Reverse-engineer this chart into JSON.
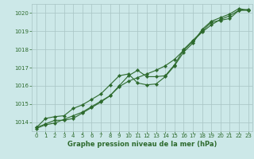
{
  "xlabel": "Graphe pression niveau de la mer (hPa)",
  "ylim": [
    1013.5,
    1020.5
  ],
  "xlim": [
    -0.5,
    23.5
  ],
  "yticks": [
    1014,
    1015,
    1016,
    1017,
    1018,
    1019,
    1020
  ],
  "xticks": [
    0,
    1,
    2,
    3,
    4,
    5,
    6,
    7,
    8,
    9,
    10,
    11,
    12,
    13,
    14,
    15,
    16,
    17,
    18,
    19,
    20,
    21,
    22,
    23
  ],
  "line1": [
    1013.7,
    1013.9,
    1014.1,
    1014.1,
    1014.2,
    1014.5,
    1014.8,
    1015.1,
    1015.45,
    1016.0,
    1016.55,
    1016.85,
    1016.5,
    1016.5,
    1016.55,
    1017.15,
    1018.0,
    1018.5,
    1019.0,
    1019.5,
    1019.6,
    1019.7,
    1020.15,
    1020.2
  ],
  "line2": [
    1013.7,
    1014.2,
    1014.3,
    1014.35,
    1014.75,
    1014.95,
    1015.25,
    1015.55,
    1016.05,
    1016.55,
    1016.65,
    1016.15,
    1016.05,
    1016.1,
    1016.5,
    1017.1,
    1017.85,
    1018.35,
    1019.1,
    1019.55,
    1019.75,
    1019.95,
    1020.25,
    1020.15
  ],
  "line3": [
    1013.65,
    1013.85,
    1013.95,
    1014.15,
    1014.35,
    1014.55,
    1014.85,
    1015.15,
    1015.45,
    1015.95,
    1016.25,
    1016.45,
    1016.65,
    1016.85,
    1017.1,
    1017.45,
    1017.95,
    1018.45,
    1018.95,
    1019.35,
    1019.65,
    1019.85,
    1020.15,
    1020.15
  ],
  "line_color": "#2d6a2d",
  "bg_color": "#cce8e8",
  "grid_color": "#a8c4c4",
  "tick_label_color": "#2d6a2d",
  "xlabel_color": "#2d6a2d",
  "marker": "D",
  "markersize": 2.2,
  "linewidth": 0.8,
  "tick_fontsize": 5.0,
  "xlabel_fontsize": 6.0
}
